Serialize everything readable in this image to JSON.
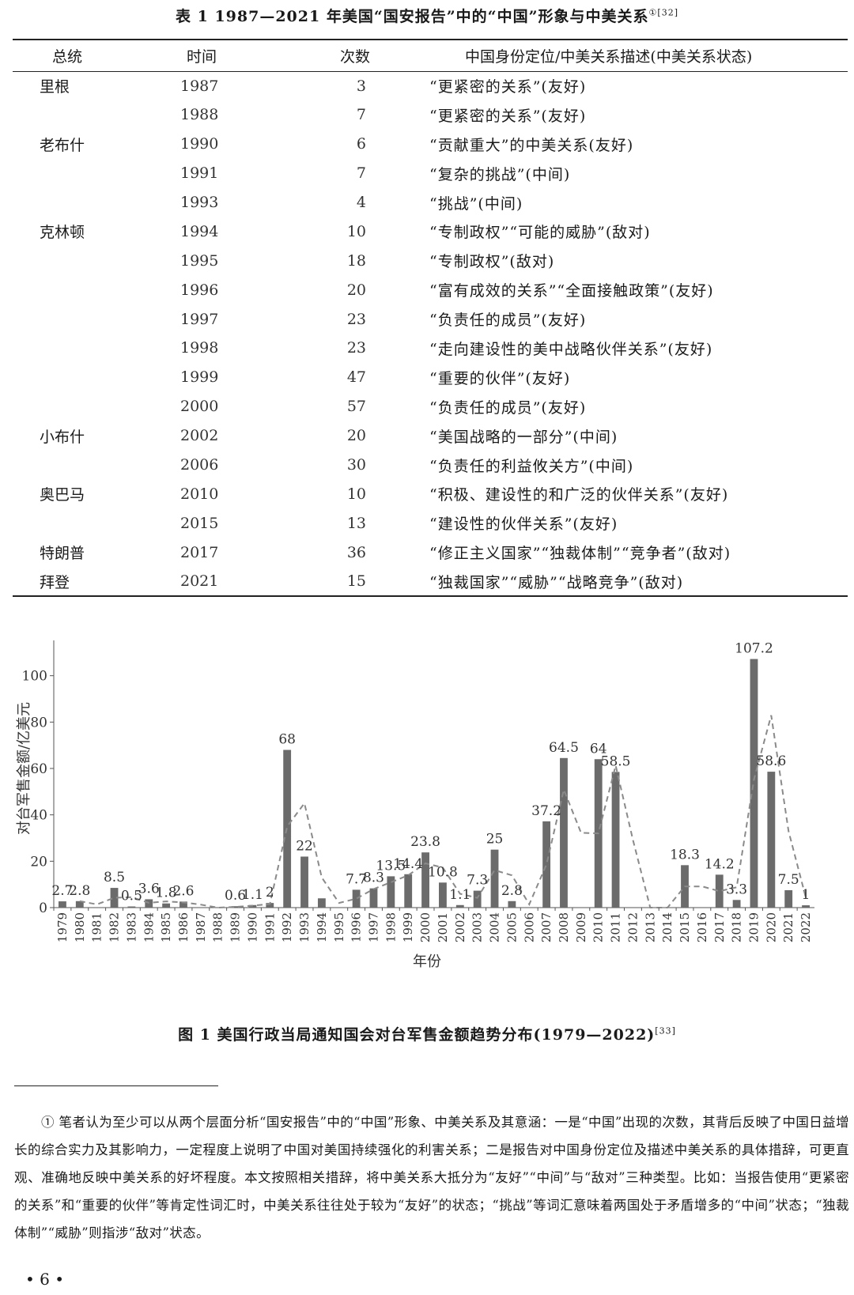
{
  "table": {
    "caption": "表 1   1987—2021 年美国“国安报告”中的“中国”形象与中美关系",
    "caption_ref": "①[32]",
    "headers": [
      "总统",
      "时间",
      "次数",
      "中国身份定位/中美关系描述(中美关系状态)"
    ],
    "rows": [
      {
        "president": "里根",
        "year": "1987",
        "count": "3",
        "desc": "“更紧密的关系”(友好)"
      },
      {
        "president": "",
        "year": "1988",
        "count": "7",
        "desc": "“更紧密的关系”(友好)"
      },
      {
        "president": "老布什",
        "year": "1990",
        "count": "6",
        "desc": "“贡献重大”的中美关系(友好)"
      },
      {
        "president": "",
        "year": "1991",
        "count": "7",
        "desc": "“复杂的挑战”(中间)"
      },
      {
        "president": "",
        "year": "1993",
        "count": "4",
        "desc": "“挑战”(中间)"
      },
      {
        "president": "克林顿",
        "year": "1994",
        "count": "10",
        "desc": "“专制政权”“可能的威胁”(敌对)"
      },
      {
        "president": "",
        "year": "1995",
        "count": "18",
        "desc": "“专制政权”(敌对)"
      },
      {
        "president": "",
        "year": "1996",
        "count": "20",
        "desc": "“富有成效的关系”“全面接触政策”(友好)"
      },
      {
        "president": "",
        "year": "1997",
        "count": "23",
        "desc": "“负责任的成员”(友好)"
      },
      {
        "president": "",
        "year": "1998",
        "count": "23",
        "desc": "“走向建设性的美中战略伙伴关系”(友好)"
      },
      {
        "president": "",
        "year": "1999",
        "count": "47",
        "desc": "“重要的伙伴”(友好)"
      },
      {
        "president": "",
        "year": "2000",
        "count": "57",
        "desc": "“负责任的成员”(友好)"
      },
      {
        "president": "小布什",
        "year": "2002",
        "count": "20",
        "desc": "“美国战略的一部分”(中间)"
      },
      {
        "president": "",
        "year": "2006",
        "count": "30",
        "desc": "“负责任的利益攸关方”(中间)"
      },
      {
        "president": "奥巴马",
        "year": "2010",
        "count": "10",
        "desc": "“积极、建设性的和广泛的伙伴关系”(友好)"
      },
      {
        "president": "",
        "year": "2015",
        "count": "13",
        "desc": "“建设性的伙伴关系”(友好)"
      },
      {
        "president": "特朗普",
        "year": "2017",
        "count": "36",
        "desc": "“修正主义国家”“独裁体制”“竞争者”(敌对)"
      },
      {
        "president": "拜登",
        "year": "2021",
        "count": "15",
        "desc": "“独裁国家”“威胁”“战略竞争”(敌对)"
      }
    ]
  },
  "chart_data": {
    "type": "bar",
    "xlabel": "年份",
    "ylabel": "对台军售金额/亿美元",
    "ylim": [
      0,
      120
    ],
    "yticks": [
      0,
      20,
      40,
      60,
      80,
      100,
      120
    ],
    "grid": false,
    "categories": [
      "1979",
      "1980",
      "1981",
      "1982",
      "1983",
      "1984",
      "1985",
      "1986",
      "1987",
      "1988",
      "1989",
      "1990",
      "1991",
      "1992",
      "1993",
      "1994",
      "1995",
      "1996",
      "1997",
      "1998",
      "1999",
      "2000",
      "2001",
      "2002",
      "2003",
      "2004",
      "2005",
      "2006",
      "2007",
      "2008",
      "2009",
      "2010",
      "2011",
      "2012",
      "2013",
      "2014",
      "2015",
      "2016",
      "2017",
      "2018",
      "2019",
      "2020",
      "2021",
      "2022"
    ],
    "values": [
      2.7,
      2.8,
      null,
      8.5,
      0.5,
      3.6,
      1.8,
      2.6,
      null,
      null,
      0.6,
      1.1,
      2,
      68,
      22,
      4,
      null,
      7.7,
      8.3,
      13.5,
      14.4,
      23.8,
      10.8,
      1.1,
      7.3,
      25,
      2.8,
      null,
      37.2,
      64.5,
      null,
      64,
      58.5,
      null,
      null,
      null,
      18.3,
      null,
      14.2,
      3.3,
      107.2,
      58.6,
      7.5,
      1
    ],
    "labels": [
      "2.7",
      "2.8",
      "",
      "8.5",
      "0.5",
      "3.6",
      "1.8",
      "2.6",
      "",
      "",
      "0.6",
      "1.1",
      "2",
      "68",
      "22",
      "",
      "",
      "7.7",
      "8.3",
      "13.5",
      "14.4",
      "23.8",
      "10.8",
      "1.1",
      "7.3",
      "25",
      "2.8",
      "",
      "37.2",
      "64.5",
      "",
      "64",
      "58.5",
      "",
      "",
      "",
      "18.3",
      "",
      "14.2",
      "3.3",
      "107.2",
      "58.6",
      "7.5",
      "1"
    ],
    "trendline": {
      "style": "dashed",
      "period": 2
    }
  },
  "figure": {
    "caption": "图 1   美国行政当局通知国会对台军售金额趋势分布(1979—2022)",
    "caption_ref": "[33]"
  },
  "footnote": {
    "text": "①   笔者认为至少可以从两个层面分析“国安报告”中的“中国”形象、中美关系及其意涵：一是“中国”出现的次数，其背后反映了中国日益增长的综合实力及其影响力，一定程度上说明了中国对美国持续强化的利害关系；二是报告对中国身份定位及描述中美关系的具体措辞，可更直观、准确地反映中美关系的好坏程度。本文按照相关措辞，将中美关系大抵分为“友好”“中间”与“敌对”三种类型。比如：当报告使用“更紧密的关系”和“重要的伙伴”等肯定性词汇时，中美关系往往处于较为“友好”的状态；“挑战”等词汇意味着两国处于矛盾增多的“中间”状态；“独裁体制”“威胁”则指涉“敌对”状态。"
  },
  "page_number": "• 6 •"
}
